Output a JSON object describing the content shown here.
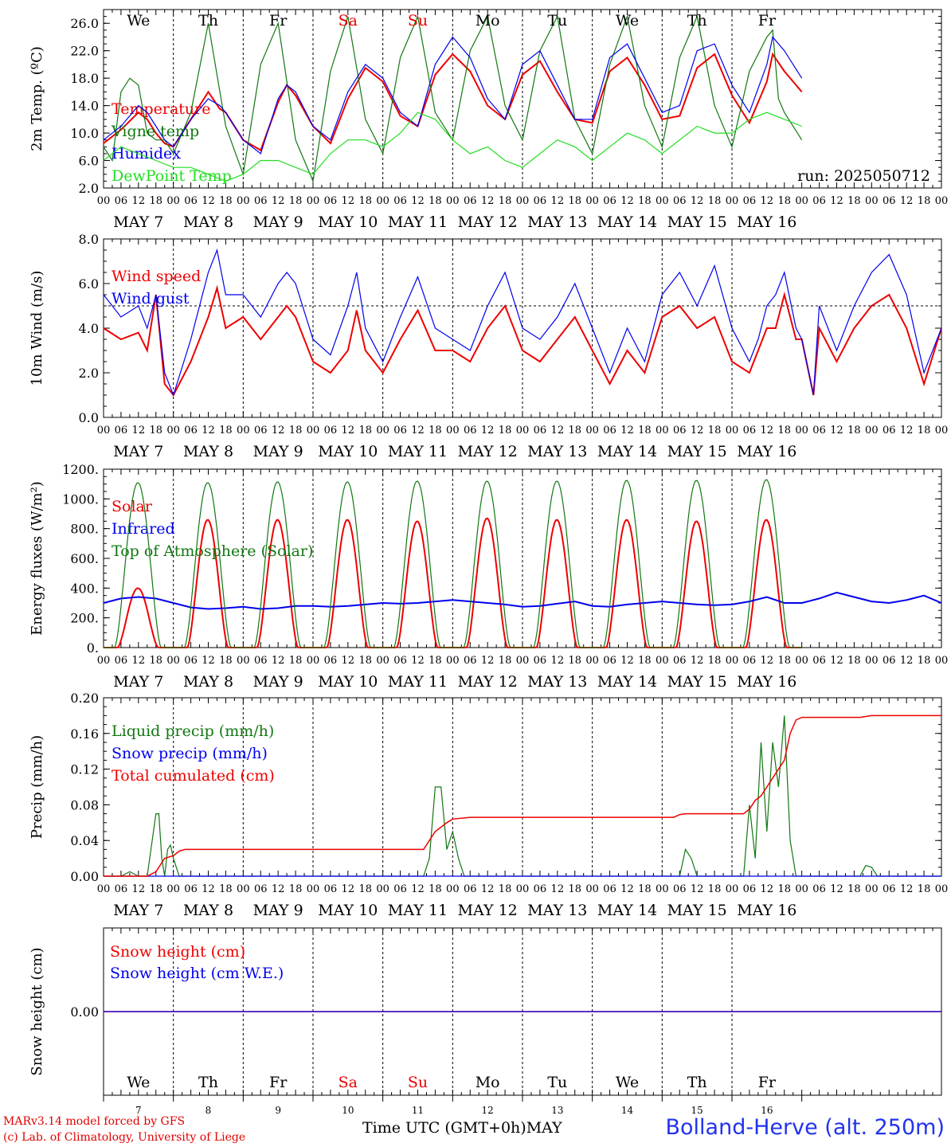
{
  "footer": {
    "credit_line1": "MARv3.14 model forced by GFS",
    "credit_line2": "(c) Lab. of Climatology, University of Liege",
    "xaxis_title": "Time UTC (GMT+0h)MAY",
    "station": "Bolland-Herve (alt. 250m)"
  },
  "run_label": "run: 2025050712",
  "colors": {
    "red": "#ee0000",
    "blue": "#0000ee",
    "green": "#11aa11",
    "darkgreen": "#117711",
    "lightgreen": "#22dd22"
  },
  "hour_ticks": [
    "00",
    "06",
    "12",
    "18"
  ],
  "date_labels": [
    "MAY  7",
    "MAY  8",
    "MAY  9",
    "MAY 10",
    "MAY 11",
    "MAY 12",
    "MAY 13",
    "MAY 14",
    "MAY 15",
    "MAY 16"
  ],
  "day_labels": [
    {
      "text": "We",
      "color": "#000000"
    },
    {
      "text": "Th",
      "color": "#000000"
    },
    {
      "text": "Fr",
      "color": "#000000"
    },
    {
      "text": "Sa",
      "color": "#ee0000"
    },
    {
      "text": "Su",
      "color": "#ee0000"
    },
    {
      "text": "Mo",
      "color": "#000000"
    },
    {
      "text": "Tu",
      "color": "#000000"
    },
    {
      "text": "We",
      "color": "#000000"
    },
    {
      "text": "Th",
      "color": "#000000"
    },
    {
      "text": "Fr",
      "color": "#000000"
    }
  ],
  "bottom_day_numbers": [
    "7",
    "8",
    "9",
    "10",
    "11",
    "12",
    "13",
    "14",
    "15",
    "16"
  ],
  "chart_data": [
    {
      "type": "line",
      "ylabel": "2m Temp. (ºC)",
      "ylim": [
        2,
        28
      ],
      "yticks": [
        "2.0",
        "6.0",
        "10.0",
        "14.0",
        "18.0",
        "22.0",
        "26.0"
      ],
      "ytick_values": [
        2,
        6,
        10,
        14,
        18,
        22,
        26
      ],
      "x_unit": "hours since May 7 00 UTC",
      "series": [
        {
          "name": "Temperature",
          "color": "#ee0000",
          "width": 2,
          "x": [
            0,
            6,
            12,
            15,
            18,
            21,
            24,
            30,
            36,
            40,
            42,
            48,
            54,
            60,
            63,
            66,
            72,
            78,
            84,
            90,
            96,
            102,
            108,
            114,
            120,
            126,
            132,
            138,
            144,
            150,
            156,
            162,
            168,
            174,
            180,
            186,
            192,
            198,
            204,
            210,
            216,
            222,
            228,
            230,
            234,
            240
          ],
          "y": [
            8.5,
            10.5,
            13,
            12,
            10,
            8.5,
            8,
            12,
            16,
            13.5,
            13,
            9,
            7.5,
            14.5,
            17,
            15.5,
            11,
            8.5,
            15,
            19.5,
            17.5,
            12.5,
            11,
            18.5,
            21.5,
            19,
            14,
            12,
            18.5,
            20.5,
            16,
            12,
            11.5,
            19,
            21,
            17,
            12,
            12.5,
            19.5,
            21.5,
            15.5,
            11.5,
            17.5,
            21.5,
            19,
            16
          ]
        },
        {
          "name": "Vigne temp",
          "color": "#117711",
          "width": 1.2,
          "x": [
            0,
            3,
            6,
            9,
            12,
            15,
            18,
            21,
            24,
            30,
            36,
            42,
            48,
            54,
            60,
            66,
            72,
            78,
            84,
            90,
            96,
            102,
            108,
            114,
            120,
            126,
            132,
            138,
            144,
            150,
            156,
            162,
            168,
            174,
            180,
            186,
            192,
            198,
            204,
            210,
            216,
            222,
            228,
            230,
            232,
            234,
            240
          ],
          "y": [
            8,
            6,
            16,
            18,
            17,
            10,
            9,
            9,
            7,
            13,
            26,
            11,
            4,
            20,
            26,
            9,
            3,
            19,
            27,
            12,
            7,
            21,
            27,
            13,
            9,
            22,
            27,
            14,
            9,
            22,
            27,
            12,
            7,
            20,
            27,
            14,
            8,
            21,
            27,
            14,
            8,
            19,
            24,
            25,
            15,
            13,
            9
          ]
        },
        {
          "name": "Humidex",
          "color": "#0000ee",
          "width": 1.2,
          "x": [
            0,
            6,
            12,
            15,
            18,
            21,
            24,
            30,
            36,
            40,
            42,
            48,
            54,
            60,
            63,
            66,
            72,
            78,
            84,
            90,
            96,
            102,
            108,
            114,
            120,
            126,
            132,
            138,
            144,
            150,
            156,
            162,
            168,
            174,
            180,
            186,
            192,
            198,
            204,
            210,
            216,
            222,
            228,
            230,
            234,
            240
          ],
          "y": [
            9,
            11,
            14,
            13,
            11,
            9,
            8,
            12,
            15,
            14,
            13,
            9,
            7,
            15,
            17,
            16,
            11,
            9,
            16,
            20,
            18,
            13,
            11,
            20,
            24,
            21,
            15,
            12,
            20,
            22,
            17,
            12,
            12,
            21,
            23,
            18,
            13,
            14,
            22,
            23,
            17,
            13,
            20,
            24,
            22,
            18
          ]
        },
        {
          "name": "DewPoint Temp",
          "color": "#22dd22",
          "width": 1.2,
          "x": [
            0,
            6,
            12,
            18,
            24,
            30,
            36,
            42,
            48,
            54,
            60,
            66,
            72,
            78,
            84,
            90,
            96,
            102,
            108,
            114,
            120,
            126,
            132,
            138,
            144,
            150,
            156,
            162,
            168,
            174,
            180,
            186,
            192,
            198,
            204,
            210,
            216,
            222,
            228,
            234,
            240
          ],
          "y": [
            6,
            8,
            7,
            6,
            5,
            5,
            4,
            3,
            4,
            6,
            6,
            5,
            4,
            7,
            9,
            9,
            8,
            10,
            13,
            12,
            9,
            7,
            8,
            6,
            5,
            7,
            9,
            8,
            6,
            8,
            10,
            9,
            7,
            9,
            11,
            10,
            10,
            12,
            13,
            12,
            11
          ]
        }
      ]
    },
    {
      "type": "line",
      "ylabel": "10m Wind (m/s)",
      "ylim": [
        0,
        8
      ],
      "yticks": [
        "0.0",
        "2.0",
        "4.0",
        "6.0",
        "8.0"
      ],
      "ytick_values": [
        0,
        2,
        4,
        6,
        8
      ],
      "ref_line": 5,
      "series": [
        {
          "name": "Wind speed",
          "color": "#ee0000",
          "width": 2,
          "x": [
            0,
            6,
            12,
            15,
            18,
            21,
            24,
            30,
            36,
            39,
            42,
            48,
            54,
            60,
            63,
            66,
            72,
            78,
            84,
            87,
            90,
            96,
            102,
            108,
            114,
            120,
            126,
            132,
            138,
            144,
            150,
            156,
            162,
            168,
            174,
            180,
            186,
            192,
            198,
            204,
            210,
            216,
            222,
            225,
            228,
            231,
            234,
            238,
            240,
            244,
            246,
            252,
            258,
            264,
            270,
            276,
            282,
            288
          ],
          "y": [
            4,
            3.5,
            3.8,
            3,
            5.5,
            1.5,
            1,
            2.5,
            4.5,
            5.8,
            4,
            4.5,
            3.5,
            4.5,
            5,
            4.5,
            2.5,
            2,
            3,
            4.8,
            3,
            2,
            3.5,
            4.8,
            3,
            3,
            2.5,
            4,
            5,
            3,
            2.5,
            3.5,
            4.5,
            3,
            1.5,
            3,
            2,
            4.5,
            5,
            4,
            4.5,
            2.5,
            2,
            3,
            4,
            4,
            5.5,
            3.5,
            3.5,
            1,
            4,
            2.5,
            4,
            5,
            5.5,
            4,
            1.5,
            4
          ]
        },
        {
          "name": "Wind gust",
          "color": "#0000ee",
          "width": 1.2,
          "x": [
            0,
            6,
            12,
            15,
            18,
            21,
            24,
            30,
            36,
            39,
            42,
            48,
            54,
            60,
            63,
            66,
            72,
            78,
            84,
            87,
            90,
            96,
            102,
            108,
            114,
            120,
            126,
            132,
            138,
            144,
            150,
            156,
            162,
            168,
            174,
            180,
            186,
            192,
            198,
            204,
            210,
            216,
            222,
            225,
            228,
            231,
            234,
            238,
            240,
            244,
            246,
            252,
            258,
            264,
            270,
            276,
            282,
            288
          ],
          "y": [
            5.5,
            4.5,
            5,
            4,
            5.5,
            2,
            1,
            3.5,
            6.5,
            7.5,
            5.5,
            5.5,
            4.5,
            6,
            6.5,
            6,
            3.5,
            2.8,
            5,
            6.5,
            4,
            2.5,
            4.5,
            6.3,
            4,
            3.5,
            3,
            5,
            6.5,
            4,
            3.5,
            4.5,
            6,
            4,
            2,
            4,
            2.5,
            5.5,
            6.5,
            5,
            6.8,
            4,
            2.5,
            3.5,
            5,
            5.5,
            6.5,
            4,
            3.5,
            1,
            5,
            3,
            5,
            6.5,
            7.3,
            5.5,
            2,
            4
          ]
        }
      ]
    },
    {
      "type": "line",
      "ylabel": "Energy fluxes (W/m²)",
      "ylim": [
        0,
        1200
      ],
      "yticks": [
        "0.",
        "200.",
        "400.",
        "600.",
        "800.",
        "1000.",
        "1200."
      ],
      "ytick_values": [
        0,
        200,
        400,
        600,
        800,
        1000,
        1200
      ],
      "series": [
        {
          "name": "Solar",
          "color": "#ee0000",
          "width": 2,
          "daily_peak": [
            400,
            860,
            860,
            860,
            850,
            870,
            860,
            860,
            850,
            860
          ]
        },
        {
          "name": "Infrared",
          "color": "#0000ee",
          "width": 2,
          "x": [
            0,
            6,
            12,
            18,
            24,
            30,
            36,
            42,
            48,
            54,
            60,
            66,
            72,
            78,
            84,
            90,
            96,
            102,
            108,
            114,
            120,
            126,
            132,
            138,
            144,
            150,
            156,
            162,
            168,
            174,
            180,
            186,
            192,
            198,
            204,
            210,
            216,
            222,
            228,
            234,
            240,
            246,
            252,
            258,
            264,
            270,
            276,
            282,
            288
          ],
          "y": [
            300,
            330,
            340,
            330,
            300,
            270,
            260,
            265,
            275,
            260,
            265,
            280,
            280,
            275,
            280,
            290,
            300,
            295,
            300,
            310,
            320,
            310,
            300,
            290,
            275,
            280,
            295,
            310,
            280,
            275,
            290,
            300,
            310,
            300,
            290,
            285,
            290,
            310,
            340,
            300,
            300,
            330,
            370,
            340,
            310,
            300,
            320,
            350,
            300
          ]
        },
        {
          "name": "Top of Atmosphere (Solar)",
          "color": "#117711",
          "width": 1.2,
          "daily_peak": [
            1110,
            1110,
            1115,
            1115,
            1120,
            1120,
            1120,
            1125,
            1125,
            1130
          ]
        }
      ]
    },
    {
      "type": "line",
      "ylabel": "Precip (mm/h)",
      "ylim": [
        0,
        0.2
      ],
      "yticks": [
        "0.00",
        "0.04",
        "0.08",
        "0.12",
        "0.16",
        "0.20"
      ],
      "ytick_values": [
        0,
        0.04,
        0.08,
        0.12,
        0.16,
        0.2
      ],
      "series": [
        {
          "name": "Liquid precip (mm/h)",
          "color": "#117711",
          "width": 1.2,
          "x": [
            0,
            6,
            9,
            12,
            15,
            18,
            19,
            20,
            21,
            22,
            23,
            24,
            26,
            28,
            30,
            48,
            110,
            112,
            114,
            116,
            118,
            120,
            122,
            124,
            126,
            140,
            196,
            198,
            200,
            202,
            204,
            220,
            222,
            224,
            226,
            228,
            230,
            232,
            234,
            236,
            238,
            240,
            260,
            262,
            264,
            266,
            288
          ],
          "y": [
            0,
            0,
            0.005,
            0,
            0,
            0.07,
            0.07,
            0.02,
            0,
            0.03,
            0.035,
            0.02,
            0,
            0,
            0,
            0,
            0,
            0.02,
            0.1,
            0.1,
            0.03,
            0.05,
            0.02,
            0,
            0,
            0,
            0,
            0,
            0.03,
            0.02,
            0,
            0,
            0.08,
            0.02,
            0.15,
            0.05,
            0.15,
            0.1,
            0.18,
            0.04,
            0,
            0,
            0,
            0.012,
            0.01,
            0,
            0
          ]
        },
        {
          "name": "Snow precip (mm/h)",
          "color": "#0000ee",
          "width": 1.2,
          "x": [
            0,
            288
          ],
          "y": [
            0,
            0
          ]
        },
        {
          "name": "Total cumulated (cm)",
          "color": "#ee0000",
          "width": 1.5,
          "x": [
            0,
            15,
            18,
            21,
            24,
            26,
            28,
            30,
            110,
            112,
            114,
            118,
            120,
            126,
            136,
            196,
            198,
            200,
            204,
            220,
            222,
            224,
            226,
            228,
            230,
            232,
            234,
            236,
            238,
            240,
            260,
            264,
            288
          ],
          "y": [
            0,
            0,
            0.005,
            0.02,
            0.023,
            0.028,
            0.03,
            0.03,
            0.03,
            0.04,
            0.05,
            0.06,
            0.064,
            0.066,
            0.066,
            0.066,
            0.069,
            0.07,
            0.07,
            0.07,
            0.075,
            0.085,
            0.09,
            0.1,
            0.11,
            0.12,
            0.13,
            0.16,
            0.175,
            0.178,
            0.178,
            0.18,
            0.18
          ]
        }
      ]
    },
    {
      "type": "line",
      "ylabel": "Snow height (cm)",
      "ylim": [
        -1,
        1
      ],
      "yticks": [
        "0.00"
      ],
      "ytick_values": [
        0
      ],
      "series": [
        {
          "name": "Snow height (cm)",
          "color": "#ee0000",
          "width": 1.5,
          "x": [
            0,
            288
          ],
          "y": [
            0,
            0
          ]
        },
        {
          "name": "Snow height (cm W.E.)",
          "color": "#0000ee",
          "width": 1.2,
          "x": [
            0,
            288
          ],
          "y": [
            0,
            0
          ]
        }
      ]
    }
  ]
}
